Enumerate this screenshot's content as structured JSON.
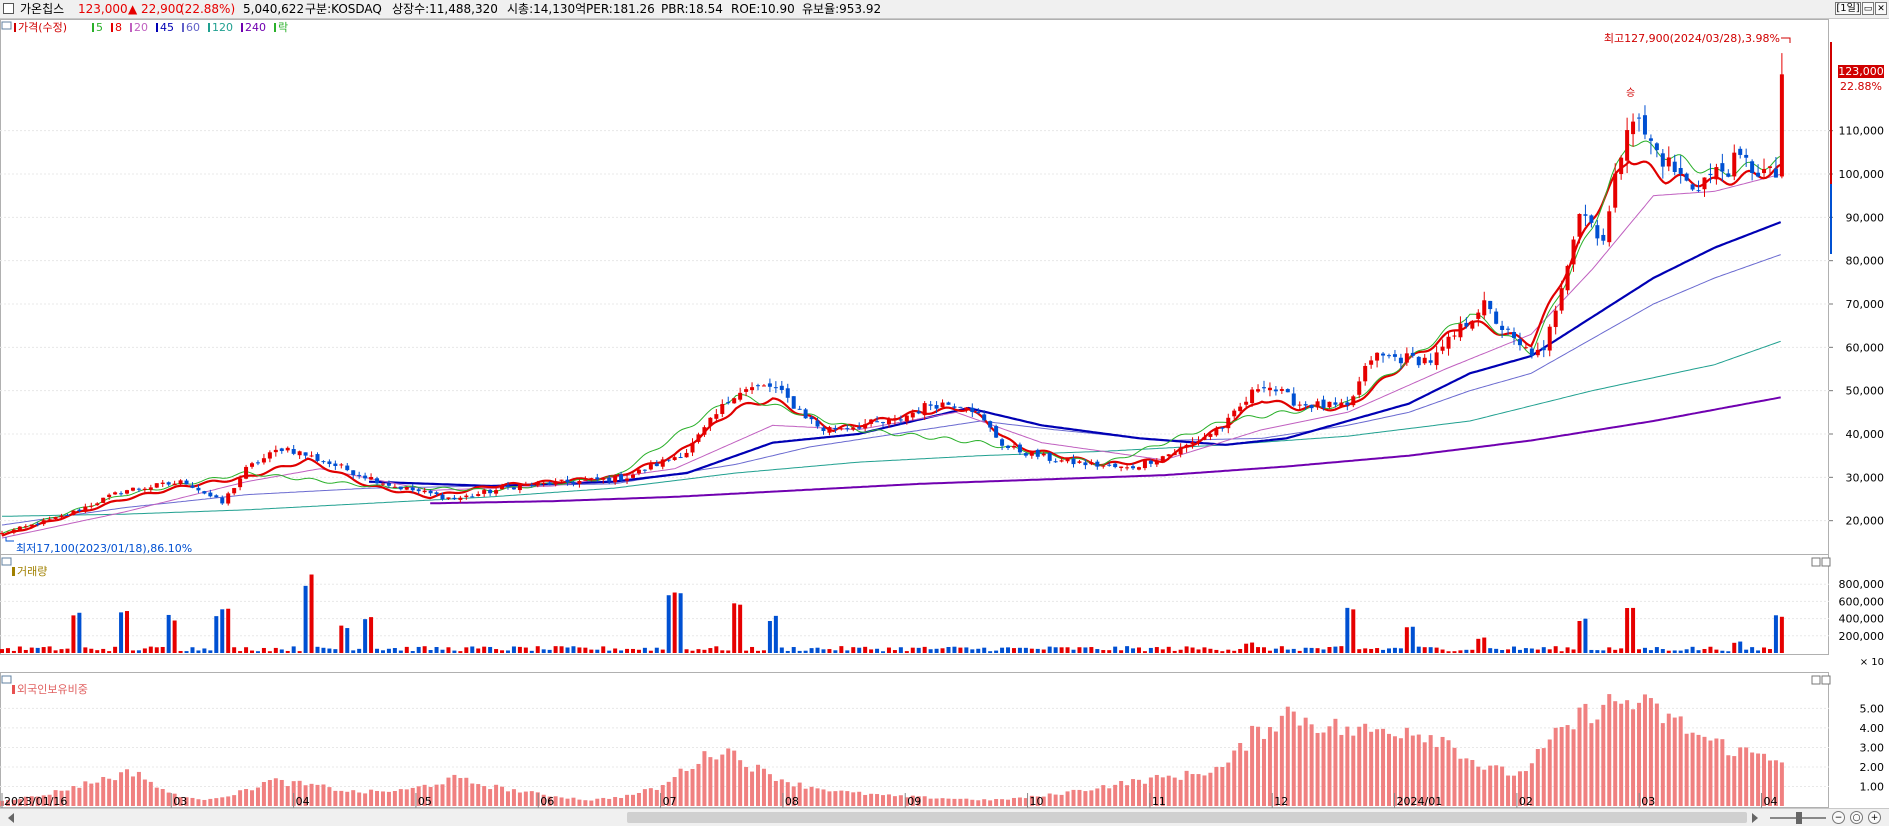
{
  "header": {
    "name": "가온칩스",
    "price": "123,000",
    "change": "▲ 22,900",
    "change_pct": "(22.88%)",
    "volume": "5,040,622",
    "market": "구분:KOSDAQ",
    "shares": "상장수:11,488,320",
    "mktcap": "시총:14,130억",
    "per": "PER:181.26",
    "pbr": "PBR:18.54",
    "roe": "ROE:10.90",
    "float": "유보율:953.92",
    "period_btn": "[1일]",
    "up_color": "#e60000",
    "down_color": "#0050d2"
  },
  "price_panel": {
    "legend": [
      {
        "label": "가격(수정)",
        "color": "#d00000"
      },
      {
        "label": "5",
        "color": "#2ab02a"
      },
      {
        "label": "8",
        "color": "#e60000"
      },
      {
        "label": "20",
        "color": "#c060c0"
      },
      {
        "label": "45",
        "color": "#0000b4"
      },
      {
        "label": "60",
        "color": "#6060c8"
      },
      {
        "label": "120",
        "color": "#20a090"
      },
      {
        "label": "240",
        "color": "#7000b0"
      },
      {
        "label": "락",
        "color": "#2ab02a"
      }
    ],
    "high_note": "최고127,900(2024/03/28),3.98%",
    "low_note": "최저17,100(2023/01/18),86.10%",
    "last_price": "123,000",
    "last_pct": "22.88%",
    "signal": "승"
  },
  "volume_panel": {
    "title": "거래량",
    "multiplier": "× 10"
  },
  "foreign_panel": {
    "title": "외국인보유비중"
  },
  "chart_data": [
    {
      "type": "candlestick",
      "title": "가격(수정)",
      "ylim": [
        13000,
        133000
      ],
      "y_ticks": [
        20000,
        30000,
        40000,
        50000,
        60000,
        70000,
        80000,
        90000,
        100000,
        110000
      ],
      "y_tick_labels": [
        "20,000",
        "30,000",
        "40,000",
        "50,000",
        "60,000",
        "70,000",
        "80,000",
        "90,000",
        "100,000",
        "110,000"
      ],
      "x_labels": [
        "2023/01/16",
        "03",
        "04",
        "05",
        "06",
        "07",
        "08",
        "09",
        "10",
        "11",
        "12",
        "2024/01",
        "02",
        "03",
        "04"
      ],
      "x_label_months": [
        0,
        1.5,
        2.5,
        3.5,
        4.5,
        5.5,
        6.5,
        7.5,
        8.5,
        9.5,
        10.5,
        11.5,
        12.5,
        13.5,
        14.5
      ],
      "close_path": [
        [
          0,
          17000
        ],
        [
          0.5,
          21000
        ],
        [
          1,
          27000
        ],
        [
          1.5,
          29000
        ],
        [
          1.8,
          24000
        ],
        [
          2,
          32000
        ],
        [
          2.3,
          37000
        ],
        [
          2.7,
          33000
        ],
        [
          3.2,
          28000
        ],
        [
          3.7,
          25000
        ],
        [
          4.2,
          28000
        ],
        [
          4.7,
          29000
        ],
        [
          5.1,
          30000
        ],
        [
          5.6,
          36000
        ],
        [
          6,
          50000
        ],
        [
          6.3,
          51000
        ],
        [
          6.7,
          41000
        ],
        [
          7.3,
          43000
        ],
        [
          7.6,
          47000
        ],
        [
          7.9,
          47000
        ],
        [
          8.2,
          37000
        ],
        [
          8.6,
          34000
        ],
        [
          9.2,
          32000
        ],
        [
          9.6,
          36000
        ],
        [
          10,
          42000
        ],
        [
          10.3,
          52000
        ],
        [
          10.6,
          47000
        ],
        [
          11,
          46000
        ],
        [
          11.2,
          58000
        ],
        [
          11.7,
          57000
        ],
        [
          12.1,
          70000
        ],
        [
          12.4,
          60000
        ],
        [
          12.6,
          58000
        ],
        [
          12.9,
          92000
        ],
        [
          13.1,
          85000
        ],
        [
          13.3,
          115000
        ],
        [
          13.5,
          106000
        ],
        [
          13.8,
          97000
        ],
        [
          14.2,
          103000
        ],
        [
          14.5,
          99000
        ],
        [
          14.55,
          123000
        ]
      ],
      "series": [
        {
          "name": "5",
          "path": [
            [
              0,
              17000
            ],
            [
              1,
              26000
            ],
            [
              2,
              31000
            ],
            [
              3,
              28000
            ],
            [
              4,
              27000
            ],
            [
              5,
              30000
            ],
            [
              6,
              49000
            ],
            [
              7,
              41000
            ],
            [
              8,
              38000
            ],
            [
              9,
              33000
            ],
            [
              10,
              43000
            ],
            [
              11,
              47000
            ],
            [
              11.5,
              57000
            ],
            [
              12,
              68000
            ],
            [
              12.5,
              59000
            ],
            [
              13,
              88000
            ],
            [
              13.3,
              108000
            ],
            [
              14,
              100000
            ],
            [
              14.55,
              103000
            ]
          ]
        },
        {
          "name": "8",
          "path": [
            [
              0,
              16500
            ],
            [
              1,
              25000
            ],
            [
              1.5,
              28000
            ],
            [
              2,
              30000
            ],
            [
              2.5,
              34000
            ],
            [
              3,
              28000
            ],
            [
              3.5,
              25500
            ],
            [
              4,
              28000
            ],
            [
              4.5,
              29000
            ],
            [
              5,
              30000
            ],
            [
              5.5,
              35000
            ],
            [
              6,
              46000
            ],
            [
              6.3,
              48000
            ],
            [
              6.8,
              41000
            ],
            [
              7.5,
              45000
            ],
            [
              7.9,
              46000
            ],
            [
              8.3,
              37000
            ],
            [
              9,
              33000
            ],
            [
              9.5,
              34000
            ],
            [
              10,
              42000
            ],
            [
              10.3,
              48000
            ],
            [
              10.6,
              46000
            ],
            [
              11,
              46000
            ],
            [
              11.5,
              57000
            ],
            [
              12,
              66000
            ],
            [
              12.5,
              61000
            ],
            [
              13,
              90000
            ],
            [
              13.3,
              104000
            ],
            [
              13.6,
              99000
            ],
            [
              14,
              98000
            ],
            [
              14.55,
              101000
            ]
          ]
        },
        {
          "name": "20",
          "path": [
            [
              0,
              16000
            ],
            [
              1,
              22000
            ],
            [
              2,
              29000
            ],
            [
              2.6,
              32000
            ],
            [
              3.5,
              27000
            ],
            [
              4.5,
              28000
            ],
            [
              5.5,
              32000
            ],
            [
              6.3,
              42000
            ],
            [
              7,
              41000
            ],
            [
              7.8,
              45000
            ],
            [
              8.5,
              38000
            ],
            [
              9.5,
              34000
            ],
            [
              10.3,
              41000
            ],
            [
              11,
              45000
            ],
            [
              11.8,
              55000
            ],
            [
              12.5,
              63000
            ],
            [
              13,
              78000
            ],
            [
              13.5,
              95000
            ],
            [
              14,
              96000
            ],
            [
              14.55,
              100000
            ]
          ]
        },
        {
          "name": "45",
          "path": [
            [
              3,
              29000
            ],
            [
              4,
              28000
            ],
            [
              5,
              29000
            ],
            [
              5.6,
              31000
            ],
            [
              6.3,
              38000
            ],
            [
              7,
              40000
            ],
            [
              7.9,
              46000
            ],
            [
              8.5,
              42000
            ],
            [
              9.3,
              39000
            ],
            [
              10,
              37500
            ],
            [
              10.5,
              39000
            ],
            [
              11,
              43000
            ],
            [
              11.5,
              47000
            ],
            [
              12,
              54000
            ],
            [
              12.5,
              58000
            ],
            [
              13,
              67000
            ],
            [
              13.5,
              76000
            ],
            [
              14,
              83000
            ],
            [
              14.55,
              89000
            ]
          ]
        },
        {
          "name": "60",
          "path": [
            [
              0,
              19000
            ],
            [
              1,
              23000
            ],
            [
              2,
              26000
            ],
            [
              3,
              27500
            ],
            [
              4,
              28000
            ],
            [
              5,
              28500
            ],
            [
              6,
              33000
            ],
            [
              6.6,
              37000
            ],
            [
              7.3,
              40000
            ],
            [
              8,
              43000
            ],
            [
              8.6,
              41000
            ],
            [
              9.5,
              38500
            ],
            [
              10.3,
              39000
            ],
            [
              11,
              42000
            ],
            [
              11.5,
              45000
            ],
            [
              12,
              50000
            ],
            [
              12.5,
              54000
            ],
            [
              13,
              62000
            ],
            [
              13.5,
              70000
            ],
            [
              14,
              76000
            ],
            [
              14.55,
              81500
            ]
          ]
        },
        {
          "name": "120",
          "path": [
            [
              0,
              21000
            ],
            [
              1,
              21500
            ],
            [
              2,
              22500
            ],
            [
              3,
              24000
            ],
            [
              4,
              25500
            ],
            [
              5,
              27500
            ],
            [
              6,
              31000
            ],
            [
              7,
              33500
            ],
            [
              8,
              35000
            ],
            [
              9,
              36000
            ],
            [
              10,
              37500
            ],
            [
              11,
              39500
            ],
            [
              12,
              43000
            ],
            [
              13,
              50000
            ],
            [
              14,
              56000
            ],
            [
              14.55,
              61500
            ]
          ]
        },
        {
          "name": "240",
          "path": [
            [
              3.5,
              24000
            ],
            [
              4.5,
              24500
            ],
            [
              5.5,
              25500
            ],
            [
              6.5,
              27000
            ],
            [
              7.5,
              28500
            ],
            [
              8.5,
              29500
            ],
            [
              9.5,
              30500
            ],
            [
              10.5,
              32500
            ],
            [
              11.5,
              35000
            ],
            [
              12.5,
              38500
            ],
            [
              13.5,
              43000
            ],
            [
              14.55,
              48500
            ]
          ]
        }
      ]
    },
    {
      "type": "bar",
      "title": "거래량",
      "ylim": [
        0,
        1000000
      ],
      "y_ticks": [
        200000,
        400000,
        600000,
        800000
      ],
      "y_tick_labels": [
        "200,000",
        "400,000",
        "600,000",
        "800,000"
      ]
    },
    {
      "type": "bar",
      "title": "외국인보유비중",
      "ylim": [
        0,
        6.2
      ],
      "y_ticks": [
        1,
        2,
        3,
        4,
        5
      ],
      "y_tick_labels": [
        "1.00",
        "2.00",
        "3.00",
        "4.00",
        "5.00"
      ],
      "path": [
        [
          0,
          0.3
        ],
        [
          0.3,
          0.5
        ],
        [
          0.6,
          1.0
        ],
        [
          0.9,
          1.5
        ],
        [
          1.1,
          1.8
        ],
        [
          1.3,
          0.8
        ],
        [
          1.6,
          0.3
        ],
        [
          1.9,
          0.6
        ],
        [
          2.2,
          1.3
        ],
        [
          2.6,
          1.0
        ],
        [
          2.9,
          0.7
        ],
        [
          3.3,
          0.8
        ],
        [
          3.7,
          1.4
        ],
        [
          4.0,
          1.0
        ],
        [
          4.4,
          0.6
        ],
        [
          4.8,
          0.3
        ],
        [
          5.1,
          0.5
        ],
        [
          5.4,
          1.0
        ],
        [
          5.6,
          2.0
        ],
        [
          5.9,
          3.0
        ],
        [
          6.2,
          1.8
        ],
        [
          6.5,
          1.1
        ],
        [
          6.9,
          0.7
        ],
        [
          7.3,
          0.5
        ],
        [
          7.7,
          0.4
        ],
        [
          8.1,
          0.3
        ],
        [
          8.5,
          0.5
        ],
        [
          8.9,
          0.9
        ],
        [
          9.3,
          1.3
        ],
        [
          9.7,
          1.6
        ],
        [
          10.0,
          2.0
        ],
        [
          10.2,
          3.5
        ],
        [
          10.5,
          4.8
        ],
        [
          10.9,
          4.0
        ],
        [
          11.1,
          3.8
        ],
        [
          11.5,
          4.0
        ],
        [
          11.8,
          3.4
        ],
        [
          12.1,
          2.0
        ],
        [
          12.4,
          1.6
        ],
        [
          12.7,
          3.5
        ],
        [
          13.0,
          5.0
        ],
        [
          13.3,
          5.4
        ],
        [
          13.6,
          4.6
        ],
        [
          13.9,
          3.5
        ],
        [
          14.2,
          2.8
        ],
        [
          14.55,
          2.5
        ]
      ]
    }
  ]
}
